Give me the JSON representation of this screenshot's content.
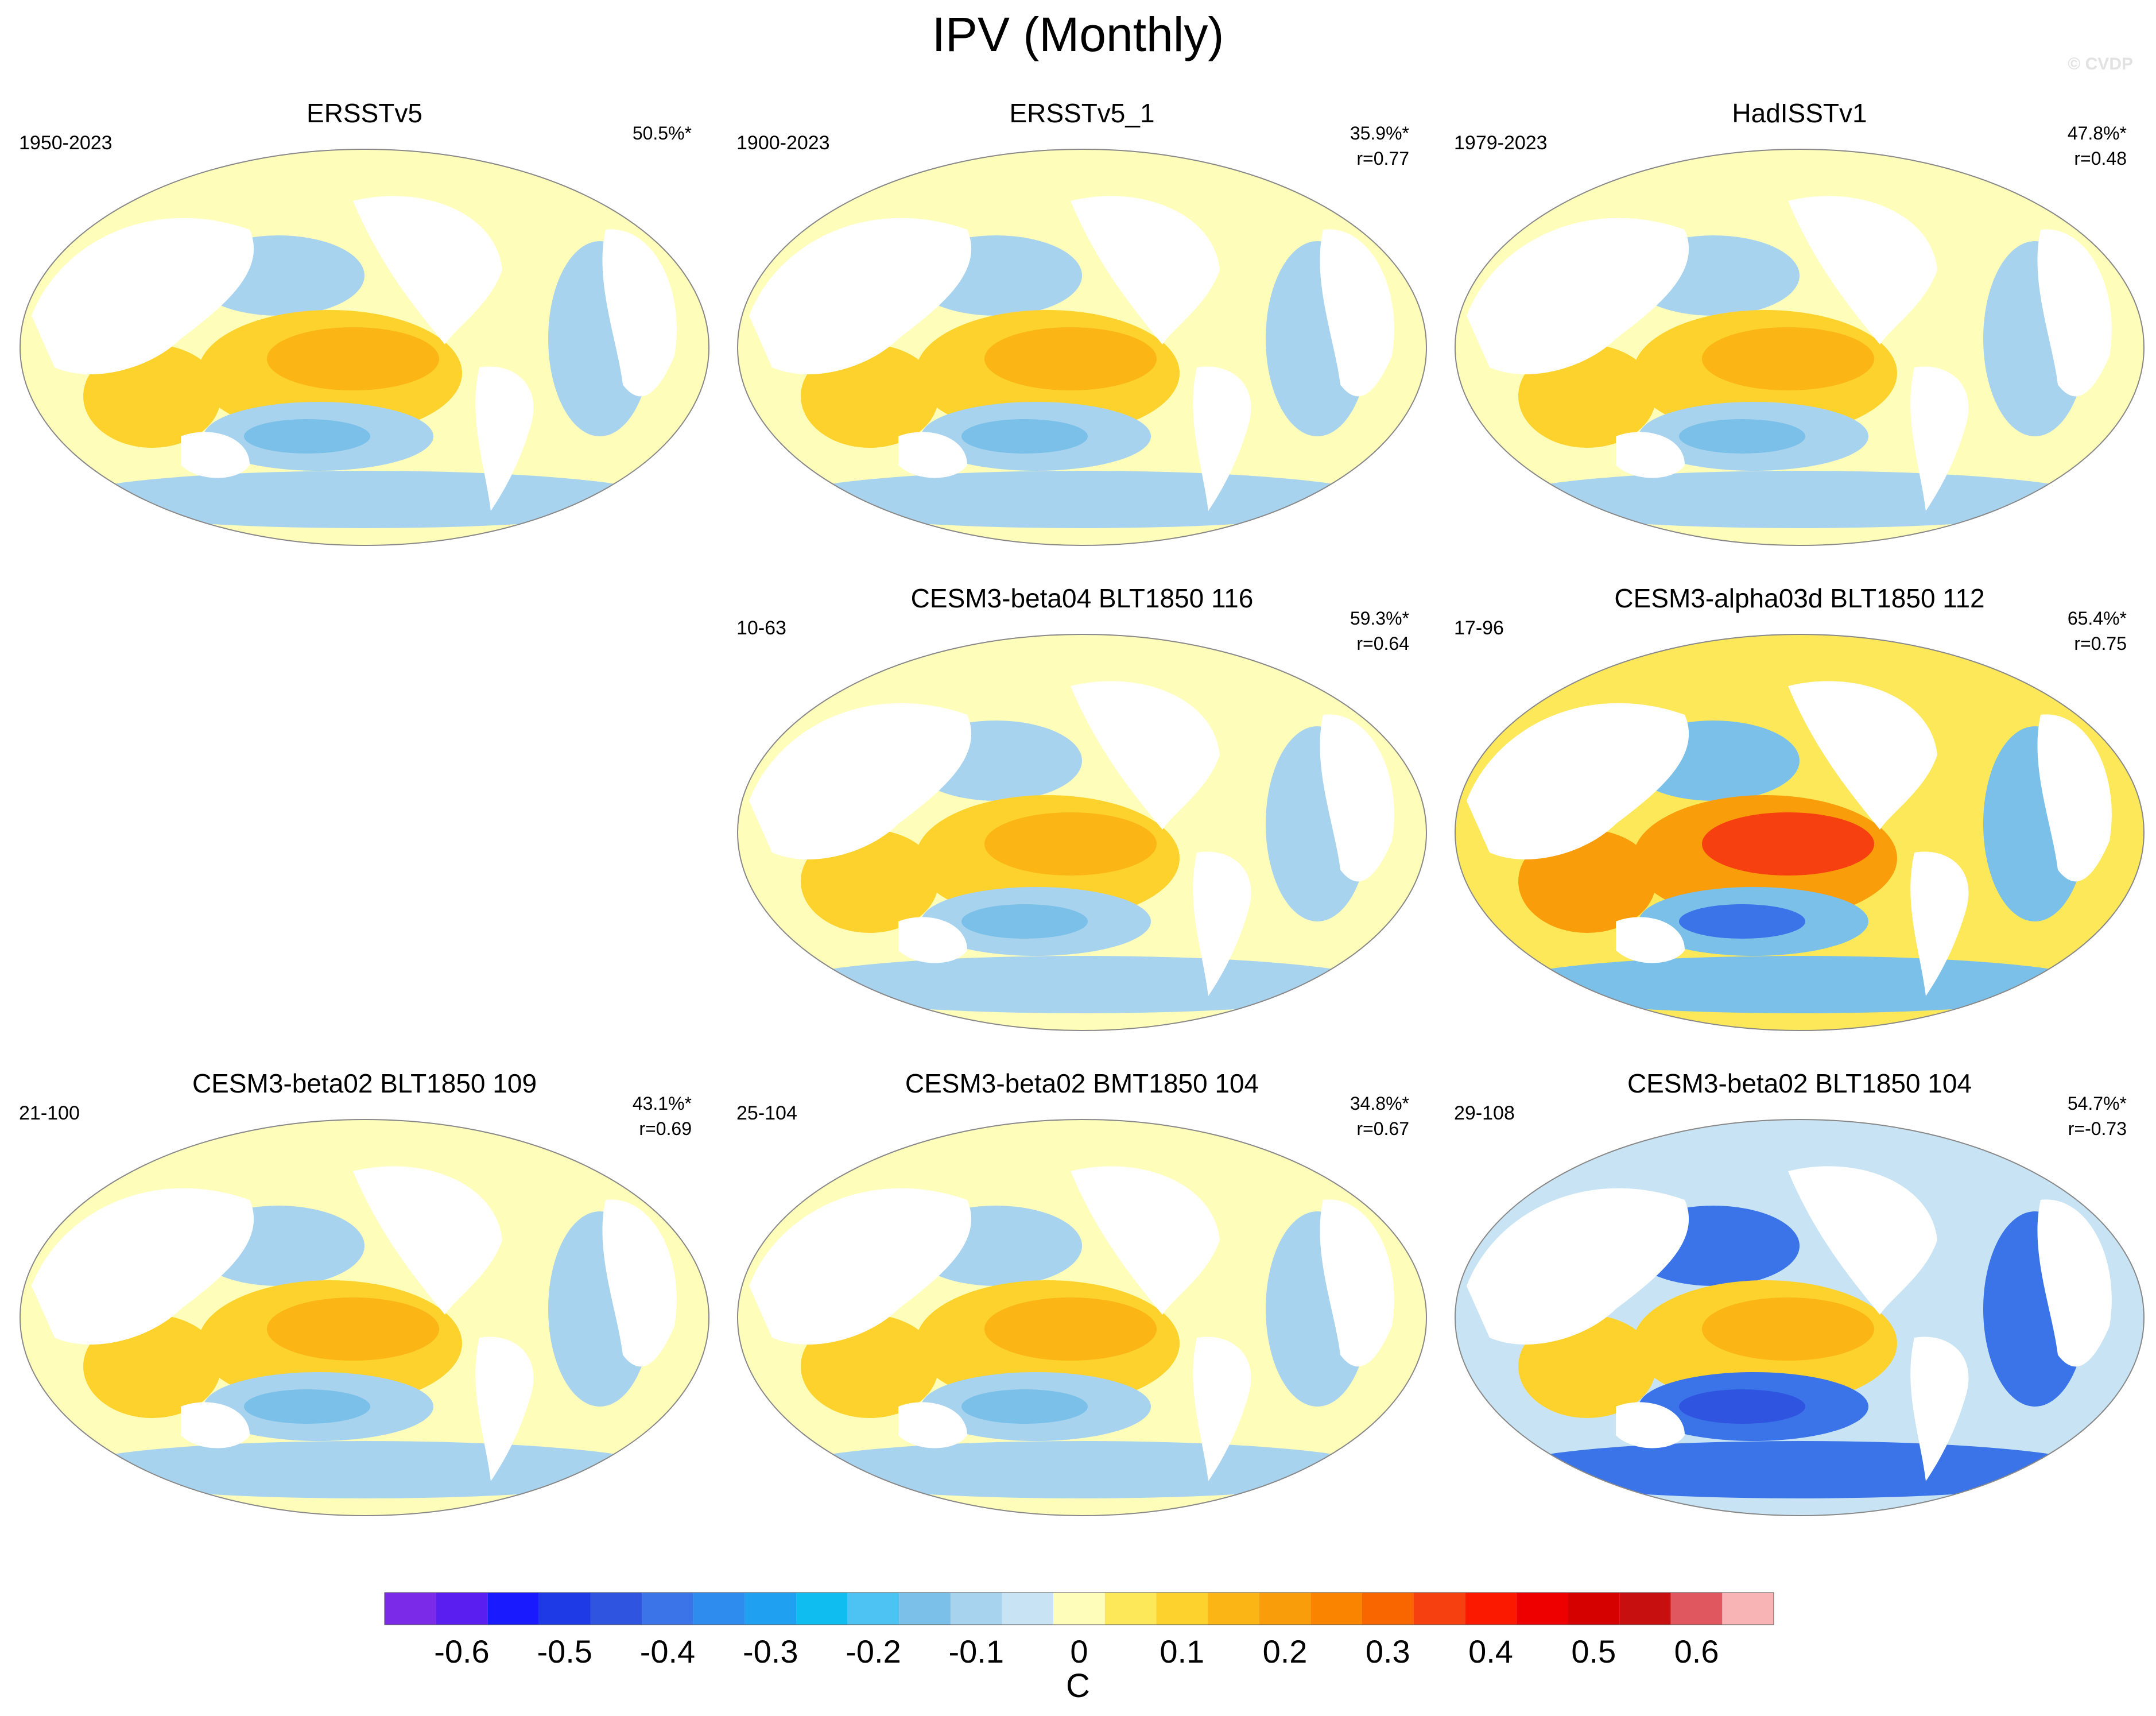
{
  "title": "IPV (Monthly)",
  "credit": "© CVDP",
  "panels": [
    {
      "title": "ERSSTv5",
      "period": "1950-2023",
      "pct": "50.5%*",
      "r": "",
      "col": 0,
      "row": 0,
      "pattern": "pos"
    },
    {
      "title": "ERSSTv5_1",
      "period": "1900-2023",
      "pct": "35.9%*",
      "r": "r=0.77",
      "col": 1,
      "row": 0,
      "pattern": "pos"
    },
    {
      "title": "HadISSTv1",
      "period": "1979-2023",
      "pct": "47.8%*",
      "r": "r=0.48",
      "col": 2,
      "row": 0,
      "pattern": "pos"
    },
    {
      "title": "CESM3-beta04 BLT1850 116",
      "period": "10-63",
      "pct": "59.3%*",
      "r": "r=0.64",
      "col": 1,
      "row": 1,
      "pattern": "pos"
    },
    {
      "title": "CESM3-alpha03d BLT1850 112",
      "period": "17-96",
      "pct": "65.4%*",
      "r": "r=0.75",
      "col": 2,
      "row": 1,
      "pattern": "strong"
    },
    {
      "title": "CESM3-beta02 BLT1850 109",
      "period": "21-100",
      "pct": "43.1%*",
      "r": "r=0.69",
      "col": 0,
      "row": 2,
      "pattern": "pos"
    },
    {
      "title": "CESM3-beta02 BMT1850 104",
      "period": "25-104",
      "pct": "34.8%*",
      "r": "r=0.67",
      "col": 1,
      "row": 2,
      "pattern": "pos"
    },
    {
      "title": "CESM3-beta02 BLT1850 104",
      "period": "29-108",
      "pct": "54.7%*",
      "r": "r=-0.73",
      "col": 2,
      "row": 2,
      "pattern": "neg"
    }
  ],
  "colorbar": {
    "unit": "C",
    "colors": [
      "#7b2be8",
      "#5a1ef0",
      "#1a1aff",
      "#1e3ae6",
      "#2f55e0",
      "#3a74e8",
      "#2e8cef",
      "#1fa0f0",
      "#0fbdf0",
      "#4cc3f2",
      "#7ac0e8",
      "#a8d3ef",
      "#c8e4f4",
      "#fffdba",
      "#fde85a",
      "#fdd22d",
      "#fbb515",
      "#fa9d0a",
      "#fa8300",
      "#f96600",
      "#f74010",
      "#fb1a00",
      "#ef0000",
      "#d50000",
      "#c70f0f",
      "#e0575f",
      "#f8b4b4"
    ],
    "labels": [
      "-0.6",
      "-0.5",
      "-0.4",
      "-0.3",
      "-0.2",
      "-0.1",
      "0",
      "0.1",
      "0.2",
      "0.3",
      "0.4",
      "0.5",
      "0.6"
    ]
  }
}
